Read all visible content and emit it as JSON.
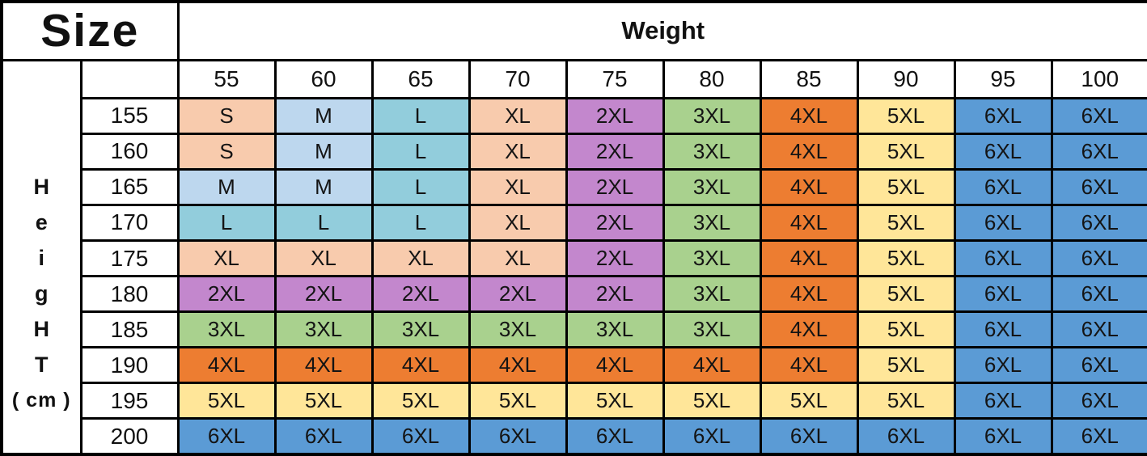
{
  "title": "Size",
  "weight_header": "Weight",
  "height_label_letters": [
    "H",
    "e",
    "i",
    "g",
    "H",
    "T",
    "( cm )"
  ],
  "size_colors": {
    "S": "#F8CBAD",
    "M": "#BDD7EE",
    "L": "#92CDDC",
    "XL": "#F8CBAD",
    "2XL": "#C387CD",
    "3XL": "#A9D18E",
    "4XL": "#ED7D31",
    "5XL": "#FFE699",
    "6XL": "#5B9BD5"
  },
  "border_color": "#000000",
  "chart_data": {
    "type": "table",
    "title": "Size",
    "xlabel": "Weight",
    "ylabel": "HeigHT ( cm )",
    "weights": [
      "55",
      "60",
      "65",
      "70",
      "75",
      "80",
      "85",
      "90",
      "95",
      "100"
    ],
    "rows": [
      {
        "height": "155",
        "sizes": [
          "S",
          "M",
          "L",
          "XL",
          "2XL",
          "3XL",
          "4XL",
          "5XL",
          "6XL",
          "6XL"
        ]
      },
      {
        "height": "160",
        "sizes": [
          "S",
          "M",
          "L",
          "XL",
          "2XL",
          "3XL",
          "4XL",
          "5XL",
          "6XL",
          "6XL"
        ]
      },
      {
        "height": "165",
        "sizes": [
          "M",
          "M",
          "L",
          "XL",
          "2XL",
          "3XL",
          "4XL",
          "5XL",
          "6XL",
          "6XL"
        ]
      },
      {
        "height": "170",
        "sizes": [
          "L",
          "L",
          "L",
          "XL",
          "2XL",
          "3XL",
          "4XL",
          "5XL",
          "6XL",
          "6XL"
        ]
      },
      {
        "height": "175",
        "sizes": [
          "XL",
          "XL",
          "XL",
          "XL",
          "2XL",
          "3XL",
          "4XL",
          "5XL",
          "6XL",
          "6XL"
        ]
      },
      {
        "height": "180",
        "sizes": [
          "2XL",
          "2XL",
          "2XL",
          "2XL",
          "2XL",
          "3XL",
          "4XL",
          "5XL",
          "6XL",
          "6XL"
        ]
      },
      {
        "height": "185",
        "sizes": [
          "3XL",
          "3XL",
          "3XL",
          "3XL",
          "3XL",
          "3XL",
          "4XL",
          "5XL",
          "6XL",
          "6XL"
        ]
      },
      {
        "height": "190",
        "sizes": [
          "4XL",
          "4XL",
          "4XL",
          "4XL",
          "4XL",
          "4XL",
          "4XL",
          "5XL",
          "6XL",
          "6XL"
        ]
      },
      {
        "height": "195",
        "sizes": [
          "5XL",
          "5XL",
          "5XL",
          "5XL",
          "5XL",
          "5XL",
          "5XL",
          "5XL",
          "6XL",
          "6XL"
        ]
      },
      {
        "height": "200",
        "sizes": [
          "6XL",
          "6XL",
          "6XL",
          "6XL",
          "6XL",
          "6XL",
          "6XL",
          "6XL",
          "6XL",
          "6XL"
        ]
      }
    ]
  }
}
